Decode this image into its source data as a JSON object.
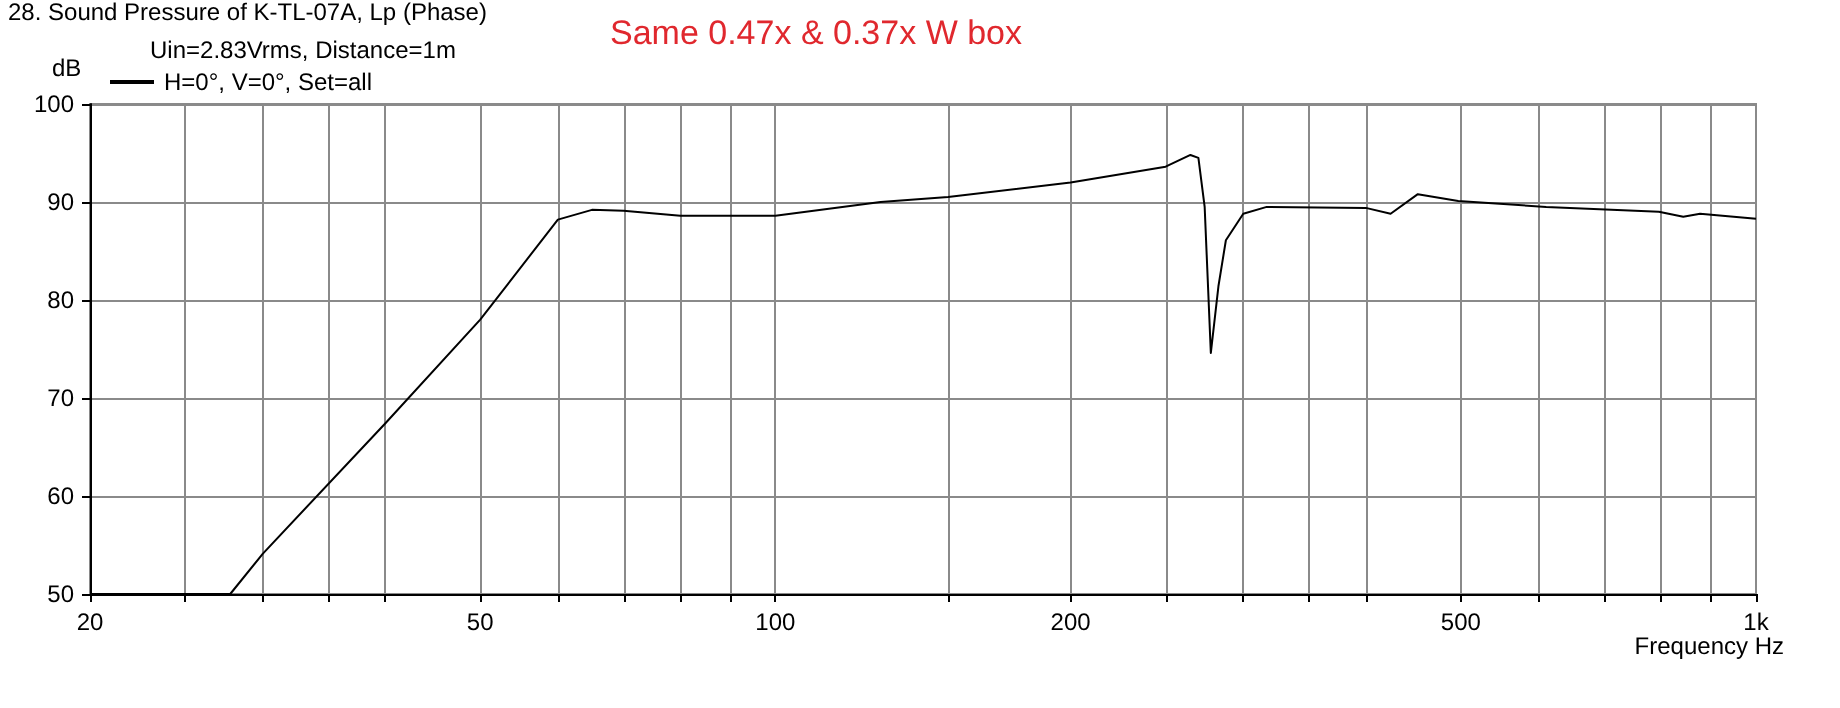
{
  "chart_data": {
    "type": "line",
    "title": "28. Sound Pressure of K-TL-07A, Lp (Phase)",
    "subtitle": "Uin=2.83Vrms, Distance=1m",
    "annotations": [
      "Same 0.47x & 0.37x W box"
    ],
    "xlabel": "Frequency Hz",
    "ylabel": "dB",
    "log": "x",
    "grid": true,
    "legend": "top left",
    "marker": "none",
    "line_style": "solid",
    "xlim": [
      20,
      1000
    ],
    "ylim": [
      50,
      100
    ],
    "xticks": [
      20,
      {
        "value": 25,
        "label": null
      },
      {
        "value": 30,
        "label": null
      },
      {
        "value": 35,
        "label": null
      },
      {
        "value": 40,
        "label": null
      },
      50,
      {
        "value": 60,
        "label": null
      },
      {
        "value": 70,
        "label": null
      },
      {
        "value": 80,
        "label": null
      },
      {
        "value": 90,
        "label": null
      },
      100,
      {
        "value": 150,
        "label": null
      },
      200,
      {
        "value": 250,
        "label": null
      },
      {
        "value": 300,
        "label": null
      },
      {
        "value": 350,
        "label": null
      },
      {
        "value": 400,
        "label": null
      },
      500,
      {
        "value": 600,
        "label": null
      },
      {
        "value": 700,
        "label": null
      },
      {
        "value": 800,
        "label": null
      },
      {
        "value": 900,
        "label": null
      },
      {
        "value": 1000,
        "label": "1k"
      }
    ],
    "yticks": [
      50,
      60,
      70,
      80,
      90,
      100
    ],
    "series": [
      {
        "name": "H=0°, V=0°, Set=all",
        "color": "#000000",
        "x": [
          20,
          27.8,
          30,
          40,
          50,
          60,
          65,
          70,
          80,
          100,
          128,
          150,
          200,
          250,
          265,
          270,
          274,
          278,
          283,
          288,
          300,
          317,
          400,
          424,
          452,
          497,
          611,
          796,
          843,
          877,
          1000
        ],
        "values": [
          50,
          50,
          54.1,
          67.4,
          78,
          88.2,
          89.2,
          89.1,
          88.6,
          88.6,
          90,
          90.5,
          92,
          93.6,
          94.8,
          94.5,
          89.5,
          74.6,
          81.4,
          86.1,
          88.8,
          89.5,
          89.4,
          88.8,
          90.8,
          90.1,
          89.5,
          89,
          88.5,
          88.8,
          88.3
        ]
      }
    ]
  }
}
